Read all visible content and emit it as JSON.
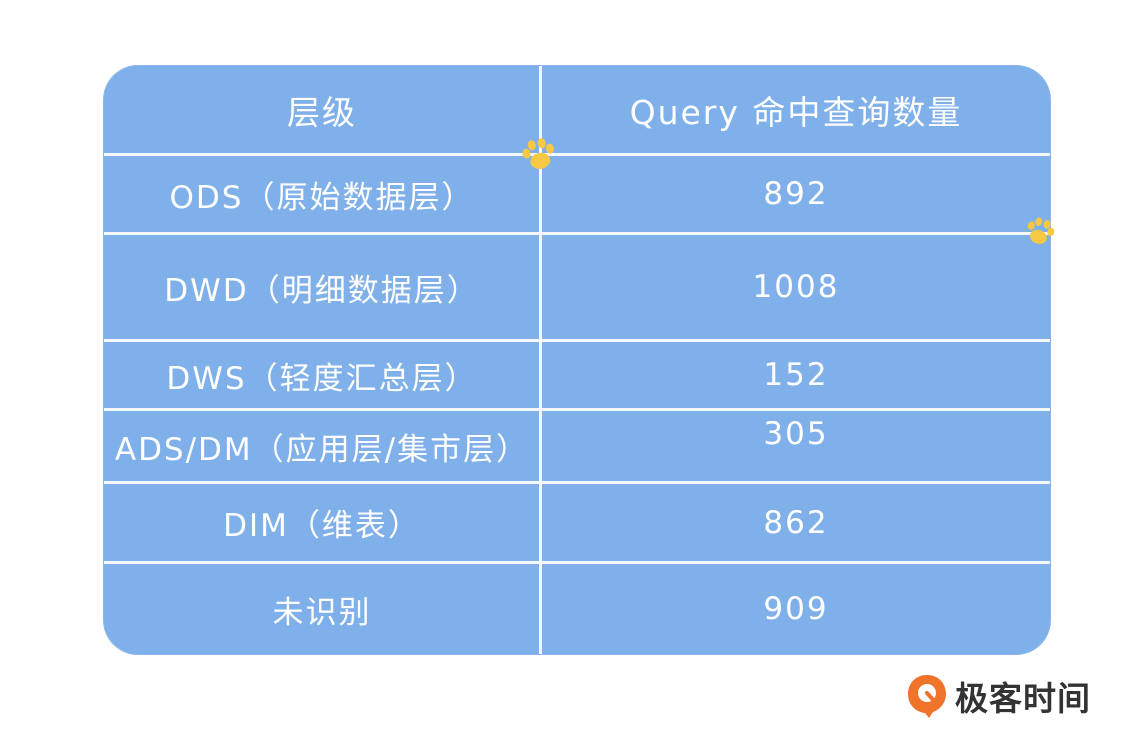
{
  "table": {
    "headers": [
      "层级",
      "Query 命中查询数量"
    ],
    "rows": [
      [
        "ODS（原始数据层）",
        "892"
      ],
      [
        "DWD（明细数据层）",
        "1008"
      ],
      [
        "DWS（轻度汇总层）",
        "152"
      ],
      [
        "ADS/DM（应用层/集市层）",
        "305"
      ],
      [
        "DIM（维表）",
        "862"
      ],
      [
        "未识别",
        "909"
      ]
    ]
  },
  "brand": {
    "name": "极客时间",
    "icon": "geektime-logo-icon"
  },
  "decor": {
    "paw_icon": "paw-print-icon",
    "colors": {
      "table_fill": "#80b0ea",
      "grid_line": "#f4f8fd",
      "paw": "#f7c843",
      "logo_orange": "#f0732a"
    }
  }
}
